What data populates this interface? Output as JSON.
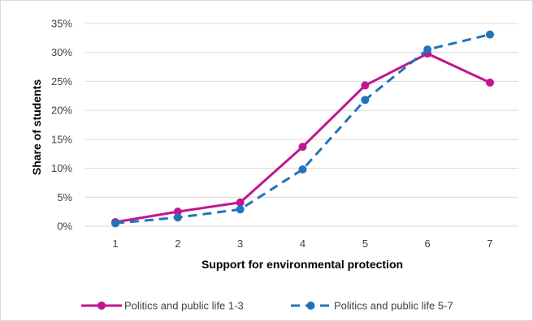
{
  "chart_data": {
    "type": "line",
    "title": "",
    "xlabel": "Support for environmental protection",
    "ylabel": "Share of students",
    "x": [
      1,
      2,
      3,
      4,
      5,
      6,
      7
    ],
    "x_tick_labels": [
      "1",
      "2",
      "3",
      "4",
      "5",
      "6",
      "7"
    ],
    "ylim": [
      0,
      35
    ],
    "y_ticks": [
      0,
      5,
      10,
      15,
      20,
      25,
      30,
      35
    ],
    "y_tick_labels": [
      "0%",
      "5%",
      "10%",
      "15%",
      "20%",
      "25%",
      "30%",
      "35%"
    ],
    "y_unit": "percent",
    "grid": "horizontal",
    "legend_position": "bottom",
    "series": [
      {
        "name": "Politics and public life 1-3",
        "values": [
          0.7,
          2.5,
          4.1,
          13.7,
          24.3,
          29.8,
          24.8
        ],
        "color": "#c0168f",
        "line_style": "solid"
      },
      {
        "name": "Politics and public life 5-7",
        "values": [
          0.5,
          1.5,
          2.9,
          9.8,
          21.8,
          30.5,
          33.1
        ],
        "color": "#1f74bb",
        "line_style": "dashed"
      }
    ]
  }
}
